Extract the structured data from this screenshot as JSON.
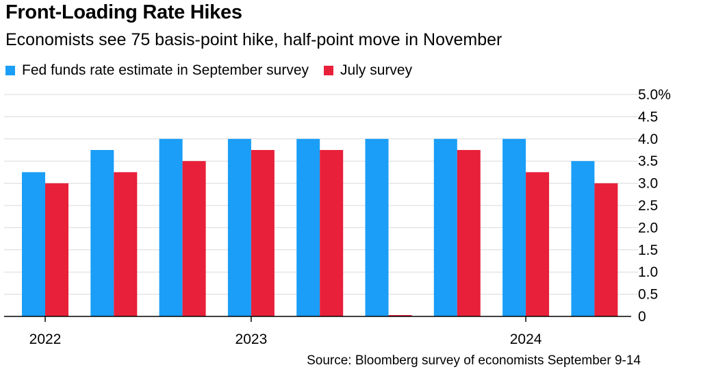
{
  "title": "Front-Loading Rate Hikes",
  "subtitle": "Economists see 75 basis-point hike, half-point move in November",
  "source": "Source: Bloomberg survey of economists September 9-14",
  "legend": [
    {
      "label": "Fed funds rate estimate in September survey",
      "color": "#1a9ef7"
    },
    {
      "label": "July survey",
      "color": "#e8203a"
    }
  ],
  "chart_data": {
    "type": "bar",
    "categories": [
      "",
      "",
      "",
      "",
      "",
      "",
      "",
      "",
      ""
    ],
    "series": [
      {
        "name": "Fed funds rate estimate in September survey",
        "color": "#1a9ef7",
        "values": [
          3.25,
          3.75,
          4.0,
          4.0,
          4.0,
          4.0,
          4.0,
          4.0,
          3.5
        ]
      },
      {
        "name": "July survey",
        "color": "#e8203a",
        "values": [
          3.0,
          3.25,
          3.5,
          3.75,
          3.75,
          0,
          3.75,
          3.25,
          3.0
        ]
      }
    ],
    "ylim": [
      0,
      5.0
    ],
    "yticks": [
      0,
      0.5,
      1.0,
      1.5,
      2.0,
      2.5,
      3.0,
      3.5,
      4.0,
      4.5,
      5.0
    ],
    "ytick_labels": [
      "0",
      "0.5",
      "1.0",
      "1.5",
      "2.0",
      "2.5",
      "3.0",
      "3.5",
      "4.0",
      "4.5",
      "5.0%"
    ],
    "x_axis_labels": [
      {
        "label": "2022",
        "category_index": 0
      },
      {
        "label": "2023",
        "category_index": 3
      },
      {
        "label": "2024",
        "category_index": 7
      }
    ],
    "grid": true,
    "axis_position": "right",
    "legend_position": "top-left"
  }
}
